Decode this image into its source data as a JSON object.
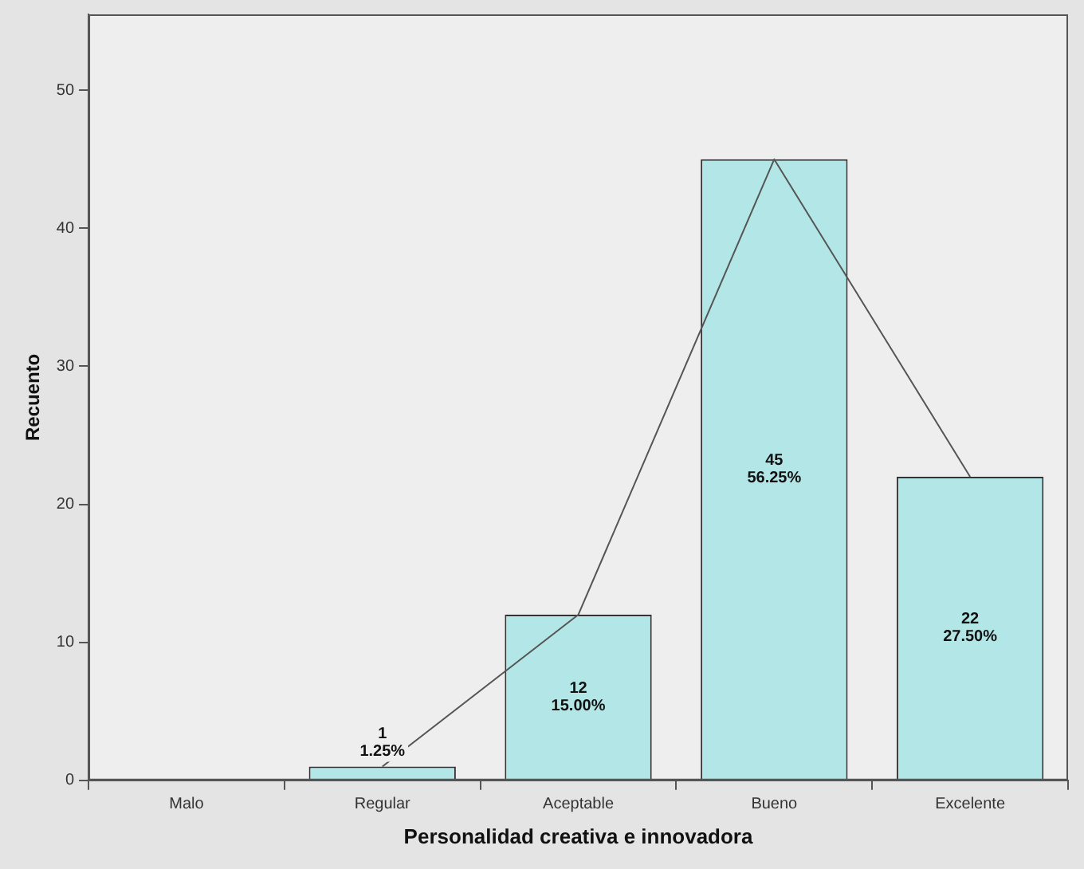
{
  "chart_data": {
    "type": "bar",
    "xlabel": "Personalidad creativa e innovadora",
    "ylabel": "Recuento",
    "categories": [
      "Malo",
      "Regular",
      "Aceptable",
      "Bueno",
      "Excelente"
    ],
    "series": [
      {
        "color": "#b3e6e6",
        "values": [
          0,
          1,
          12,
          45,
          22
        ],
        "value_labels": [
          null,
          "1\n1.25%",
          "12\n15.00%",
          "45\n56.25%",
          "22\n27.50%"
        ]
      },
      {
        "type": "line",
        "color": "#555555",
        "values": [
          null,
          1,
          12,
          45,
          22
        ],
        "marker": "none",
        "line_style": "solid"
      }
    ],
    "ylim": [
      0,
      55.5
    ],
    "yticks": [
      0,
      10,
      20,
      30,
      40,
      50
    ],
    "grid": false,
    "legend": false
  }
}
